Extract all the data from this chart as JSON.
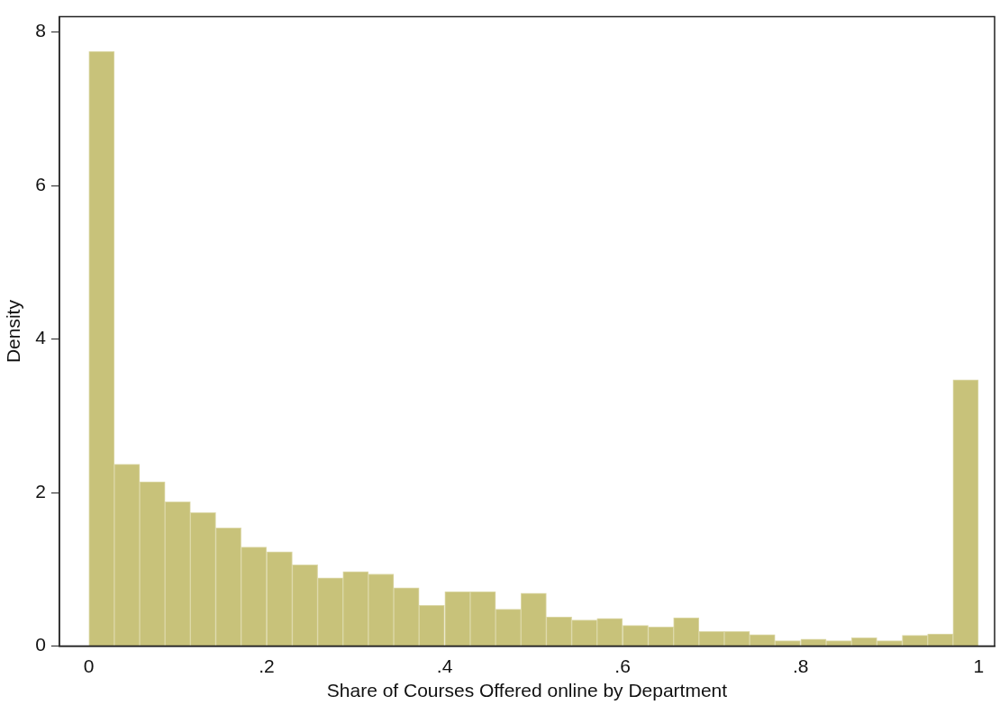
{
  "chart_data": {
    "type": "histogram",
    "xlabel": "Share of Courses Offered online by Department",
    "ylabel": "Density",
    "bins": [
      0,
      0.029,
      0.057,
      0.086,
      0.114,
      0.143,
      0.171,
      0.2,
      0.229,
      0.257,
      0.286,
      0.314,
      0.343,
      0.371,
      0.4,
      0.429,
      0.457,
      0.486,
      0.514,
      0.543,
      0.571,
      0.6,
      0.629,
      0.657,
      0.686,
      0.714,
      0.743,
      0.771,
      0.8,
      0.829,
      0.857,
      0.886,
      0.914,
      0.943,
      0.971,
      1
    ],
    "values": [
      7.75,
      2.37,
      2.14,
      1.88,
      1.74,
      1.54,
      1.29,
      1.23,
      1.06,
      0.89,
      0.97,
      0.94,
      0.76,
      0.53,
      0.71,
      0.71,
      0.48,
      0.69,
      0.38,
      0.34,
      0.36,
      0.27,
      0.25,
      0.37,
      0.19,
      0.19,
      0.15,
      0.07,
      0.09,
      0.07,
      0.11,
      0.07,
      0.14,
      0.16,
      3.47
    ],
    "color": "#c8c27a",
    "xlim": [
      -0.033,
      1.018
    ],
    "xticks": [
      0,
      {
        "value": 0.2,
        "label": ".2"
      },
      {
        "value": 0.4,
        "label": ".4"
      },
      {
        "value": 0.6,
        "label": ".6"
      },
      {
        "value": 0.8,
        "label": ".8"
      },
      1
    ],
    "ylim": [
      0,
      8.2
    ],
    "yticks": [
      0,
      2,
      4,
      6,
      8
    ],
    "grid": false,
    "legend": false
  }
}
